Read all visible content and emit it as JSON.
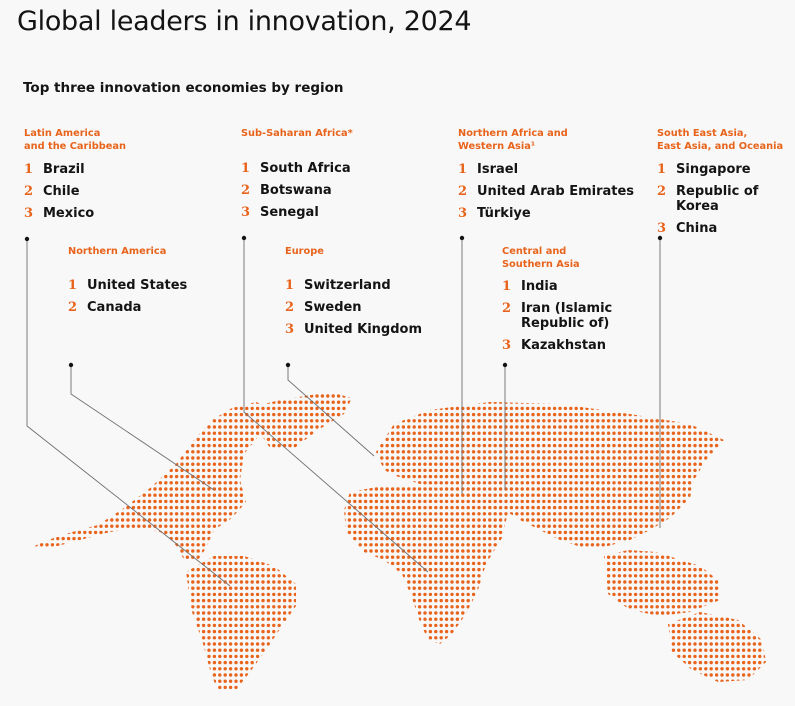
{
  "title": "Global leaders in innovation, 2024",
  "subtitle": "Top three innovation economies by region",
  "colors": {
    "accent": "#e8641c",
    "leader": "#6f6f6f",
    "background": "#f8f8f8"
  },
  "regions": [
    {
      "name": "Latin America\nand the Caribbean",
      "leaders": [
        {
          "rank": "1",
          "country": "Brazil"
        },
        {
          "rank": "2",
          "country": "Chile"
        },
        {
          "rank": "3",
          "country": "Mexico"
        }
      ]
    },
    {
      "name": "Sub-Saharan Africa*",
      "leaders": [
        {
          "rank": "1",
          "country": "South Africa"
        },
        {
          "rank": "2",
          "country": "Botswana"
        },
        {
          "rank": "3",
          "country": "Senegal"
        }
      ]
    },
    {
      "name": "Northern Africa and\nWestern Asia¹",
      "leaders": [
        {
          "rank": "1",
          "country": "Israel"
        },
        {
          "rank": "2",
          "country": "United Arab Emirates"
        },
        {
          "rank": "3",
          "country": "Türkiye"
        }
      ]
    },
    {
      "name": "South East Asia,\nEast Asia, and Oceania",
      "leaders": [
        {
          "rank": "1",
          "country": "Singapore"
        },
        {
          "rank": "2",
          "country": "Republic of Korea"
        },
        {
          "rank": "3",
          "country": "China"
        }
      ]
    },
    {
      "name": "Northern America",
      "leaders": [
        {
          "rank": "1",
          "country": "United States"
        },
        {
          "rank": "2",
          "country": "Canada"
        }
      ]
    },
    {
      "name": "Europe",
      "leaders": [
        {
          "rank": "1",
          "country": "Switzerland"
        },
        {
          "rank": "2",
          "country": "Sweden"
        },
        {
          "rank": "3",
          "country": "United Kingdom"
        }
      ]
    },
    {
      "name": "Central and\nSouthern Asia",
      "leaders": [
        {
          "rank": "1",
          "country": "India"
        },
        {
          "rank": "2",
          "country": "Iran (Islamic\nRepublic of)"
        },
        {
          "rank": "3",
          "country": "Kazakhstan"
        }
      ]
    }
  ]
}
